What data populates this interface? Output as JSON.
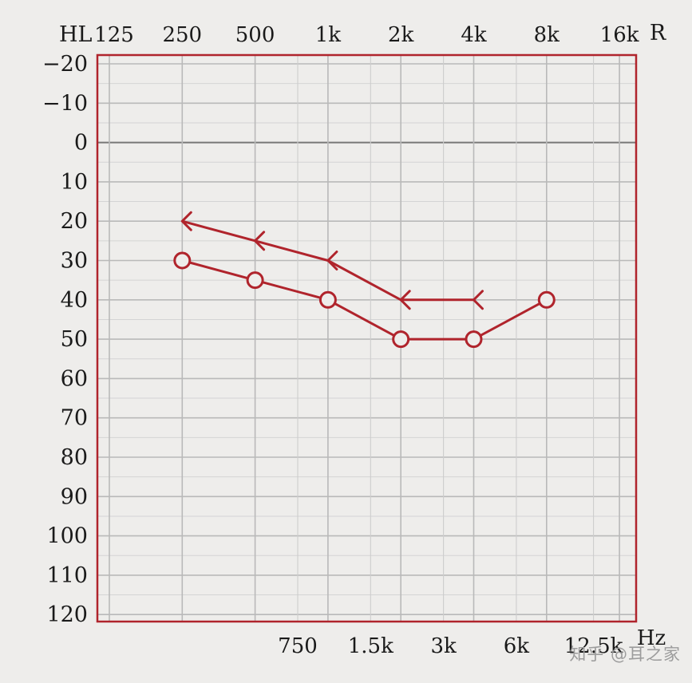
{
  "chart_data": {
    "type": "line",
    "y_axis_label": "HL",
    "ear_label": "R",
    "unit_label": "Hz",
    "y_ticks": [
      "-20",
      "-10",
      "0",
      "10",
      "20",
      "30",
      "40",
      "50",
      "60",
      "70",
      "80",
      "90",
      "100",
      "110",
      "120"
    ],
    "ylim": [
      -20,
      120
    ],
    "y_inverted": true,
    "x_scale": "log2",
    "x_ticks_top": [
      {
        "label": "125",
        "hz": 125
      },
      {
        "label": "250",
        "hz": 250
      },
      {
        "label": "500",
        "hz": 500
      },
      {
        "label": "1k",
        "hz": 1000
      },
      {
        "label": "2k",
        "hz": 2000
      },
      {
        "label": "4k",
        "hz": 4000
      },
      {
        "label": "8k",
        "hz": 8000
      },
      {
        "label": "16k",
        "hz": 16000
      }
    ],
    "x_ticks_bottom": [
      {
        "label": "750",
        "hz": 750
      },
      {
        "label": "1.5k",
        "hz": 1500
      },
      {
        "label": "3k",
        "hz": 3000
      },
      {
        "label": "6k",
        "hz": 6000
      },
      {
        "label": "12.5k",
        "hz": 12500
      }
    ],
    "series": [
      {
        "marker": "circle",
        "color": "#b0242c",
        "x": [
          250,
          500,
          1000,
          2000,
          4000,
          8000
        ],
        "y": [
          30,
          35,
          40,
          50,
          50,
          40
        ]
      },
      {
        "marker": "arrow",
        "color": "#b0242c",
        "x": [
          250,
          500,
          1000,
          2000,
          4000
        ],
        "y": [
          20,
          25,
          30,
          40,
          40
        ]
      }
    ],
    "grid": true,
    "frame_color": "#b0242c"
  },
  "watermark": "知乎 @耳之家"
}
